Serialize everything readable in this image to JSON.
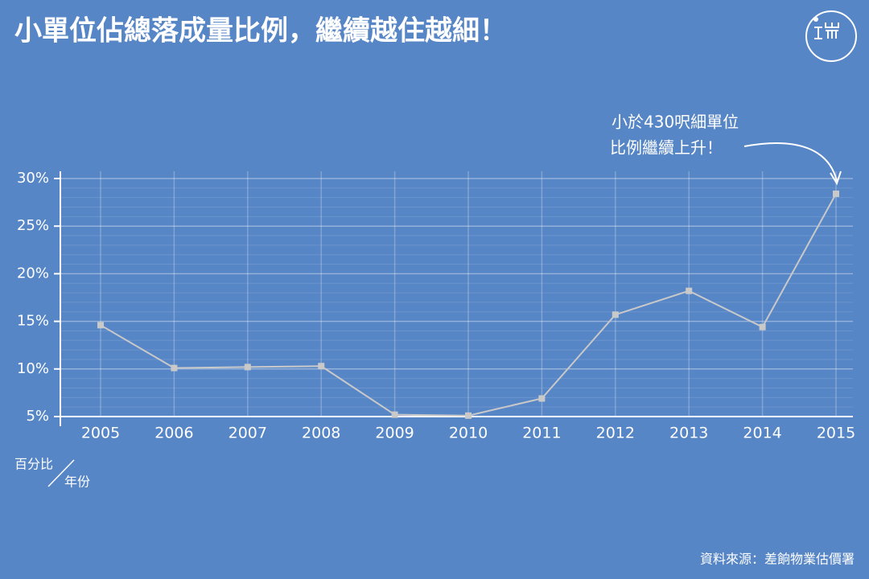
{
  "chart_data": {
    "type": "line",
    "title": "小單位佔總落成量比例，繼續越住越細！",
    "categories": [
      "2005",
      "2006",
      "2007",
      "2008",
      "2009",
      "2010",
      "2011",
      "2012",
      "2013",
      "2014",
      "2015"
    ],
    "series": [
      {
        "color": "#c9c9c9",
        "values": [
          14.6,
          10.1,
          10.2,
          10.3,
          5.2,
          5.1,
          6.9,
          15.7,
          18.2,
          14.4,
          28.4
        ]
      }
    ],
    "ylim": [
      5,
      30
    ],
    "yticks": [
      {
        "value": 5,
        "label": "5%"
      },
      {
        "value": 10,
        "label": "10%"
      },
      {
        "value": 15,
        "label": "15%"
      },
      {
        "value": 20,
        "label": "20%"
      },
      {
        "value": 25,
        "label": "25%"
      },
      {
        "value": 30,
        "label": "30%"
      }
    ],
    "grid": true,
    "y_label": "百分比",
    "x_label": "年份",
    "annotation": [
      "小於430呎細單位",
      "比例繼續上升！"
    ],
    "source": "資料來源：差餉物業估價署"
  }
}
